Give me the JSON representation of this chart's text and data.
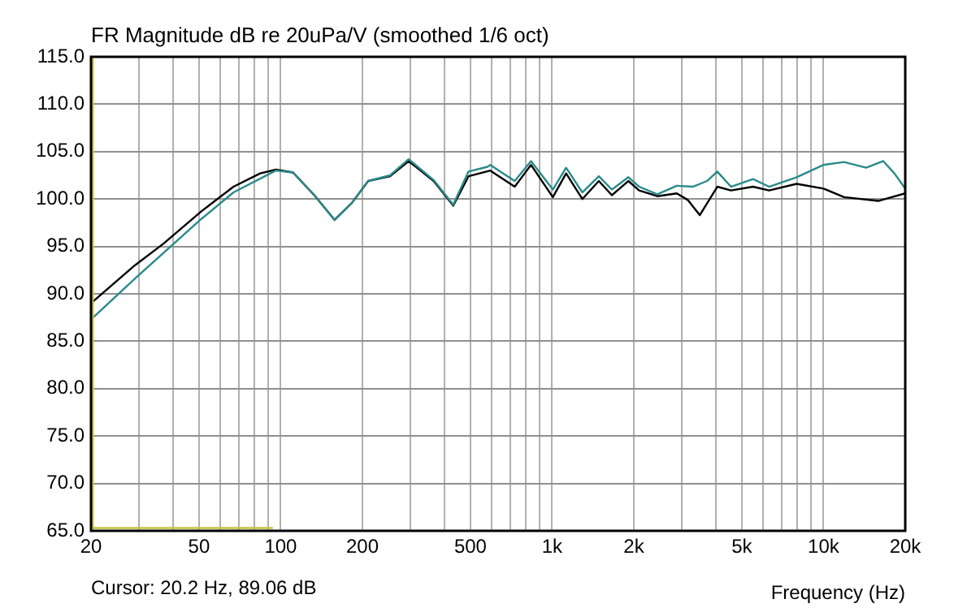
{
  "chart_data": {
    "type": "line",
    "title": "FR Magnitude dB re 20uPa/V (smoothed 1/6 oct)",
    "xlabel": "Frequency (Hz)",
    "annotations": [
      "Cursor: 20.2 Hz, 89.06 dB"
    ],
    "log": "x",
    "grid": true,
    "legend": false,
    "marker": "none",
    "line_style": "solid",
    "xlim": [
      20,
      20000
    ],
    "xticks": [
      {
        "value": 20,
        "label": "20"
      },
      {
        "value": 30,
        "label": null
      },
      {
        "value": 40,
        "label": null
      },
      {
        "value": 50,
        "label": "50"
      },
      {
        "value": 60,
        "label": null
      },
      {
        "value": 70,
        "label": null
      },
      {
        "value": 80,
        "label": null
      },
      {
        "value": 90,
        "label": null
      },
      {
        "value": 100,
        "label": "100"
      },
      {
        "value": 200,
        "label": "200"
      },
      {
        "value": 300,
        "label": null
      },
      {
        "value": 400,
        "label": null
      },
      {
        "value": 500,
        "label": "500"
      },
      {
        "value": 600,
        "label": null
      },
      {
        "value": 700,
        "label": null
      },
      {
        "value": 800,
        "label": null
      },
      {
        "value": 900,
        "label": null
      },
      {
        "value": 1000,
        "label": "1k"
      },
      {
        "value": 2000,
        "label": "2k"
      },
      {
        "value": 3000,
        "label": null
      },
      {
        "value": 4000,
        "label": null
      },
      {
        "value": 5000,
        "label": "5k"
      },
      {
        "value": 6000,
        "label": null
      },
      {
        "value": 7000,
        "label": null
      },
      {
        "value": 8000,
        "label": null
      },
      {
        "value": 9000,
        "label": null
      },
      {
        "value": 10000,
        "label": "10k"
      },
      {
        "value": 20000,
        "label": "20k"
      }
    ],
    "ylim": [
      65,
      115
    ],
    "yticks": [
      {
        "value": 65,
        "label": "65.0"
      },
      {
        "value": 70,
        "label": "70.0"
      },
      {
        "value": 75,
        "label": "75.0"
      },
      {
        "value": 80,
        "label": "80.0"
      },
      {
        "value": 85,
        "label": "85.0"
      },
      {
        "value": 90,
        "label": "90.0"
      },
      {
        "value": 95,
        "label": "95.0"
      },
      {
        "value": 100,
        "label": "100.0"
      },
      {
        "value": 105,
        "label": "105.0"
      },
      {
        "value": 110,
        "label": "110.0"
      },
      {
        "value": 115,
        "label": "115.0"
      }
    ],
    "ref_lines": [
      {
        "axis": "x",
        "value": 20.2,
        "color": "#c8c040"
      }
    ],
    "series": [
      {
        "color": "#2a8a8a",
        "x": [
          20,
          29,
          51,
          67,
          96,
          111,
          133,
          158,
          183,
          210,
          253,
          296,
          366,
          432,
          492,
          578,
          592,
          728,
          836,
          1006,
          1126,
          1292,
          1486,
          1660,
          1910,
          2092,
          2440,
          2880,
          3300,
          3720,
          4060,
          4560,
          5500,
          6300,
          7960,
          10000,
          11900,
          14360,
          16600,
          18240,
          20000
        ],
        "values": [
          87.3,
          91.6,
          97.9,
          100.7,
          103.0,
          102.8,
          100.4,
          97.8,
          99.6,
          101.9,
          102.5,
          104.2,
          102.0,
          99.4,
          102.9,
          103.4,
          103.6,
          101.9,
          104.0,
          101.0,
          103.3,
          100.7,
          102.4,
          101.0,
          102.3,
          101.3,
          100.5,
          101.4,
          101.3,
          101.9,
          102.9,
          101.3,
          102.1,
          101.3,
          102.3,
          103.6,
          103.9,
          103.3,
          104.0,
          102.7,
          101.1
        ]
      },
      {
        "color": "#000000",
        "x": [
          20,
          29,
          37,
          51,
          67,
          84,
          96,
          111,
          133,
          158,
          183,
          210,
          253,
          296,
          366,
          432,
          492,
          592,
          728,
          836,
          1006,
          1126,
          1292,
          1486,
          1660,
          1910,
          2092,
          2440,
          2880,
          3160,
          3500,
          4060,
          4560,
          5500,
          6300,
          7960,
          10000,
          11900,
          15900,
          20000
        ],
        "values": [
          89.0,
          93.0,
          95.3,
          98.7,
          101.3,
          102.7,
          103.1,
          102.8,
          100.4,
          97.8,
          99.6,
          101.9,
          102.4,
          104.0,
          101.9,
          99.3,
          102.4,
          103.0,
          101.3,
          103.6,
          100.2,
          102.7,
          100.0,
          101.9,
          100.4,
          101.9,
          100.9,
          100.3,
          100.6,
          99.9,
          98.3,
          101.3,
          100.9,
          101.3,
          100.9,
          101.6,
          101.1,
          100.2,
          99.8,
          100.6
        ]
      },
      {
        "color": "#c8c040",
        "x": [
          20,
          93
        ],
        "values": [
          65.3,
          65.3
        ]
      }
    ]
  }
}
